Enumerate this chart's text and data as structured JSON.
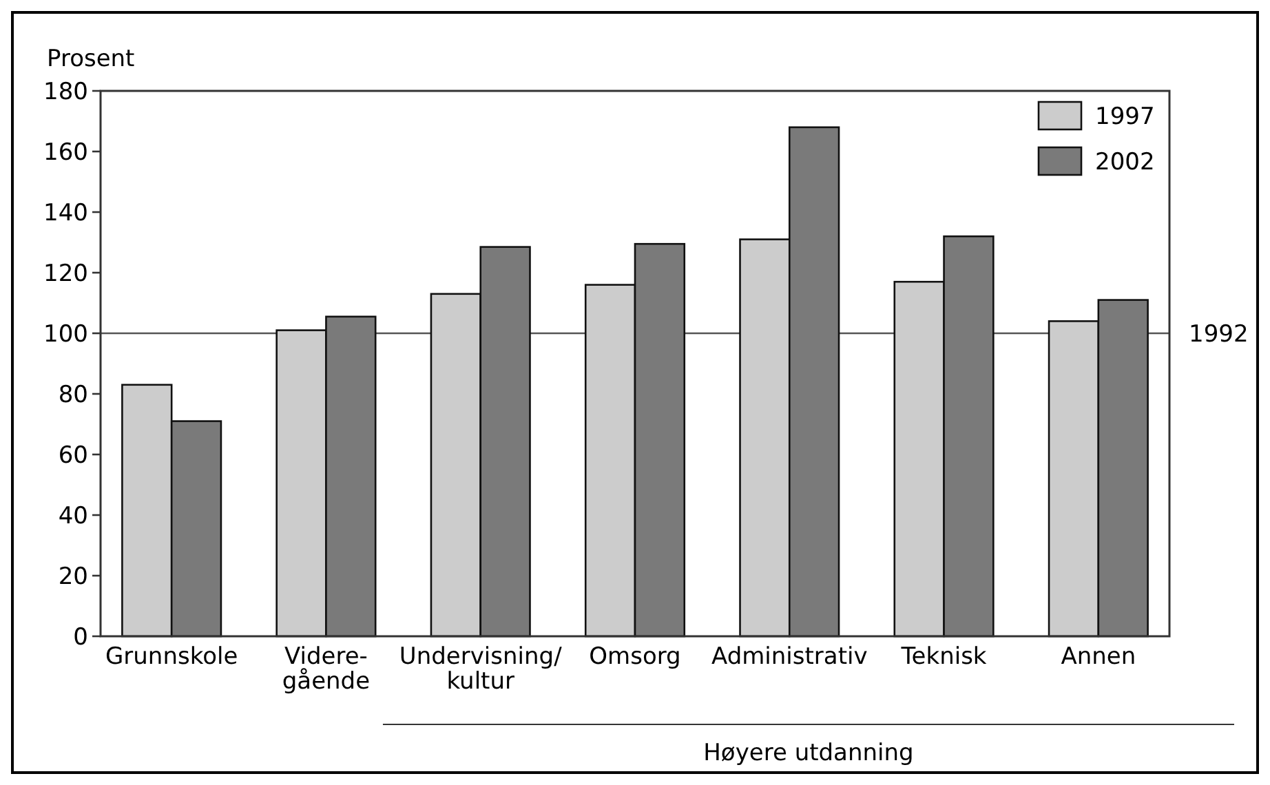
{
  "chart_data": {
    "type": "bar",
    "ylabel": "Prosent",
    "categories": [
      "Grunnskole",
      "Videre-\ngående",
      "Undervisning/\nkultur",
      "Omsorg",
      "Administrativ",
      "Teknisk",
      "Annen"
    ],
    "series": [
      {
        "name": "1997",
        "color": "#cccccc",
        "values": [
          83,
          101,
          113,
          116,
          131,
          117,
          104
        ]
      },
      {
        "name": "2002",
        "color": "#7a7a7a",
        "values": [
          71,
          105.5,
          128.5,
          129.5,
          168,
          132,
          111
        ]
      }
    ],
    "ylim": [
      0,
      180
    ],
    "yticks": [
      0,
      20,
      40,
      60,
      80,
      100,
      120,
      140,
      160,
      180
    ],
    "ref_lines": [
      {
        "axis": "y",
        "value": 100,
        "color": "#555555"
      }
    ],
    "annotations": [
      "Høyere utdanning",
      "1992"
    ],
    "legend": "top right",
    "grid": false
  }
}
